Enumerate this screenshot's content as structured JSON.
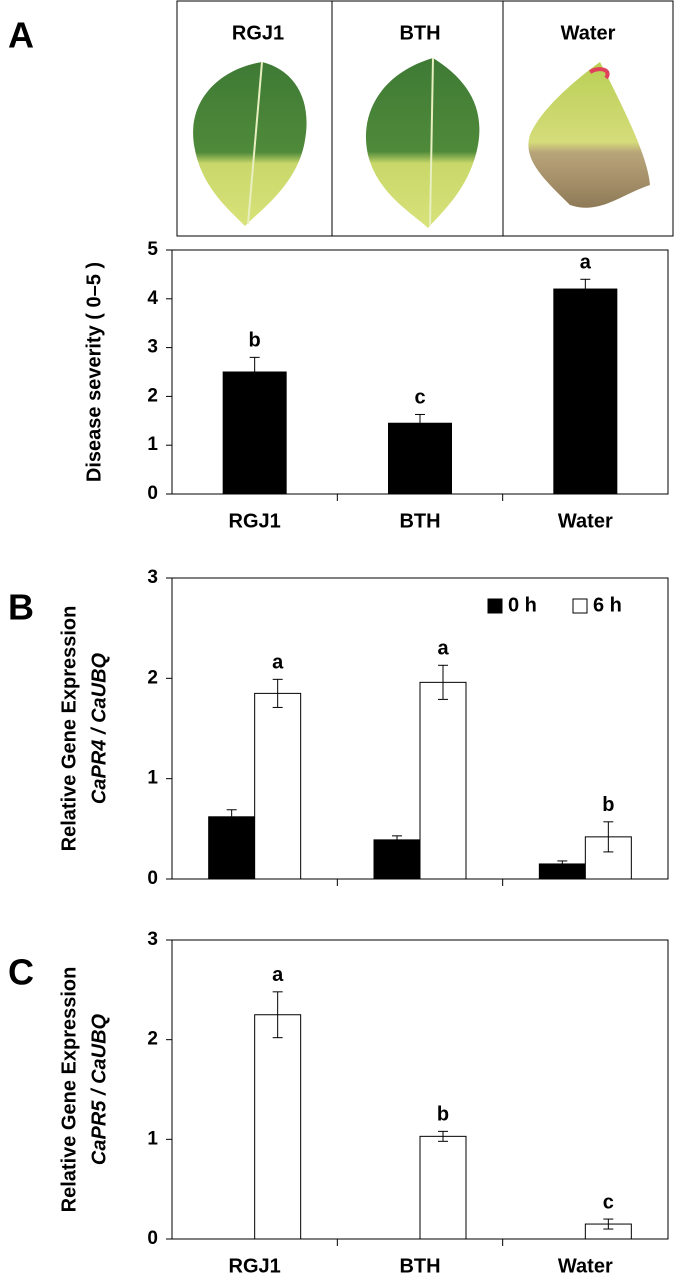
{
  "panel_labels": [
    "A",
    "B",
    "C"
  ],
  "photo": {
    "labels": [
      "RGJ1",
      "BTH",
      "Water"
    ]
  },
  "chart_data": [
    {
      "type": "bar",
      "ylabel": "Disease severity ( 0–5 )",
      "categories": [
        "RGJ1",
        "BTH",
        "Water"
      ],
      "values": [
        2.5,
        1.45,
        4.2
      ],
      "errors": [
        0.3,
        0.18,
        0.2
      ],
      "letters": [
        "b",
        "c",
        "a"
      ],
      "color": "#000000",
      "ylim": [
        0,
        5
      ],
      "yticks": [
        0,
        1,
        2,
        3,
        4,
        5
      ],
      "grid": false
    },
    {
      "type": "bar",
      "ylabel": [
        "Relative Gene Expression",
        "CaPR4 / CaUBQ"
      ],
      "series": [
        {
          "name": "0 h",
          "color": "#000000",
          "values": [
            0.62,
            0.39,
            0.15
          ],
          "errors": [
            0.07,
            0.04,
            0.03
          ]
        },
        {
          "name": "6 h",
          "color": "#ffffff",
          "values": [
            1.85,
            1.96,
            0.42
          ],
          "errors": [
            0.14,
            0.17,
            0.15
          ],
          "letters": [
            "a",
            "a",
            "b"
          ]
        }
      ],
      "ylim": [
        0,
        3
      ],
      "yticks": [
        0,
        1,
        2,
        3
      ],
      "grid": false,
      "legend": "upper right"
    },
    {
      "type": "bar",
      "ylabel": [
        "Relative Gene Expression",
        "CaPR5 / CaUBQ"
      ],
      "categories": [
        "RGJ1",
        "BTH",
        "Water"
      ],
      "series": [
        {
          "color": "#000000",
          "values": [
            0,
            0,
            0
          ]
        },
        {
          "color": "#ffffff",
          "values": [
            2.25,
            1.03,
            0.15
          ],
          "errors": [
            0.23,
            0.05,
            0.05
          ],
          "letters": [
            "a",
            "b",
            "c"
          ]
        }
      ],
      "ylim": [
        0,
        3
      ],
      "yticks": [
        0,
        1,
        2,
        3
      ],
      "grid": false
    }
  ]
}
